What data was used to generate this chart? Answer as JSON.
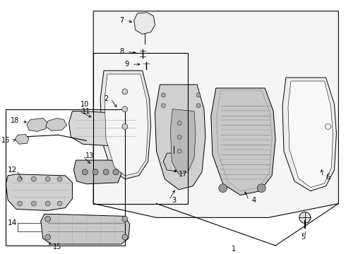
{
  "bg_color": "#ffffff",
  "line_color": "#000000",
  "figsize": [
    4.9,
    3.6
  ],
  "dpi": 100,
  "fs": 7.0
}
